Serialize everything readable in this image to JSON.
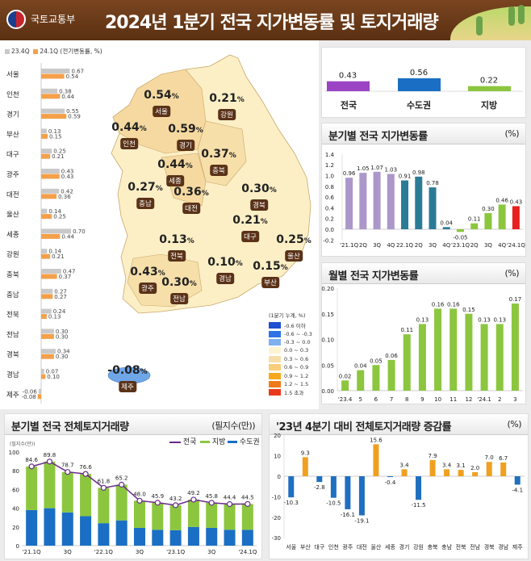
{
  "header": {
    "org": "국토교통부",
    "title": "2024년 1분기 전국 지가변동률 및 토지거래량"
  },
  "map": {
    "regions": [
      {
        "name": "서울",
        "value": "0.54"
      },
      {
        "name": "강원",
        "value": "0.21"
      },
      {
        "name": "인천",
        "value": "0.44"
      },
      {
        "name": "경기",
        "value": "0.59"
      },
      {
        "name": "충북",
        "value": "0.37"
      },
      {
        "name": "세종",
        "value": "0.44"
      },
      {
        "name": "충남",
        "value": "0.27"
      },
      {
        "name": "대전",
        "value": "0.36"
      },
      {
        "name": "경북",
        "value": "0.30"
      },
      {
        "name": "대구",
        "value": "0.21"
      },
      {
        "name": "울산",
        "value": "0.25"
      },
      {
        "name": "전북",
        "value": "0.13"
      },
      {
        "name": "경남",
        "value": "0.10"
      },
      {
        "name": "부산",
        "value": "0.15"
      },
      {
        "name": "광주",
        "value": "0.43"
      },
      {
        "name": "전남",
        "value": "0.30"
      },
      {
        "name": "제주",
        "value": "-0.08"
      }
    ],
    "unit": "%",
    "legend_title": "(1분기 누계, %)",
    "legend": [
      {
        "label": "-0.6 이하",
        "color": "#1f4fd0"
      },
      {
        "label": "-0.6 ~ -0.3",
        "color": "#2f72e6"
      },
      {
        "label": "-0.3 ~ 0.0",
        "color": "#7fb0f0"
      },
      {
        "label": "0.0 ~ 0.3",
        "color": "#fdf4d2"
      },
      {
        "label": "0.3 ~ 0.6",
        "color": "#f7dfaa"
      },
      {
        "label": "0.6 ~ 0.9",
        "color": "#f9cd7a"
      },
      {
        "label": "0.9 ~ 1.2",
        "color": "#f6a81c"
      },
      {
        "label": "1.2 ~ 1.5",
        "color": "#ee7a1c"
      },
      {
        "label": "1.5 초과",
        "color": "#e83a1a"
      }
    ]
  },
  "chart_data": [
    {
      "type": "bar",
      "orientation": "horizontal",
      "note": "(전기변동률, %)",
      "categories": [
        "서울",
        "인천",
        "경기",
        "부산",
        "대구",
        "광주",
        "대전",
        "울산",
        "세종",
        "강원",
        "충북",
        "충남",
        "전북",
        "전남",
        "경북",
        "경남",
        "제주"
      ],
      "series": [
        {
          "name": "23.4Q",
          "color": "#c9c9c9",
          "values": [
            0.67,
            0.38,
            0.55,
            0.13,
            0.25,
            0.43,
            0.42,
            0.14,
            0.7,
            0.14,
            0.47,
            0.27,
            0.24,
            0.3,
            0.34,
            0.07,
            -0.06
          ],
          "labels": [
            "0.67",
            "0.38",
            "0.55",
            "0.13",
            "0.25",
            "0.43",
            "0.42",
            "0.14",
            "0.70",
            "0.14",
            "0.47",
            "0.27",
            "0.24",
            "0.30",
            "0.34",
            "0.07",
            "-0.06"
          ]
        },
        {
          "name": "24.1Q",
          "color": "#f5a04a",
          "values": [
            0.54,
            0.44,
            0.59,
            0.15,
            0.21,
            0.43,
            0.36,
            0.25,
            0.44,
            0.21,
            0.37,
            0.27,
            0.13,
            0.3,
            0.3,
            0.1,
            -0.08
          ],
          "labels": [
            "0.54",
            "0.44",
            "0.59",
            "0.15",
            "0.21",
            "0.43",
            "0.36",
            "0.25",
            "0.44",
            "0.21",
            "0.37",
            "0.27",
            "0.13",
            "0.30",
            "0.30",
            "0.10",
            "-0.08"
          ]
        }
      ]
    },
    {
      "type": "bar",
      "categories": [
        "전국",
        "수도권",
        "지방"
      ],
      "values": [
        0.43,
        0.56,
        0.22
      ],
      "labels": [
        "0.43",
        "0.56",
        "0.22"
      ],
      "colors": [
        "#9b45c4",
        "#1a6fc4",
        "#8cc63f"
      ]
    },
    {
      "type": "bar",
      "title": "분기별 전국 지가변동률",
      "unit": "(%)",
      "categories": [
        "'21.1Q",
        "2Q",
        "3Q",
        "4Q",
        "22.1Q",
        "2Q",
        "3Q",
        "4Q",
        "'23.1Q",
        "2Q",
        "3Q",
        "4Q",
        "'24.1Q"
      ],
      "values": [
        0.96,
        1.05,
        1.07,
        1.03,
        0.91,
        0.98,
        0.78,
        0.04,
        -0.05,
        0.11,
        0.3,
        0.46,
        0.43
      ],
      "labels": [
        "0.96",
        "1.05",
        "1.07",
        "1.03",
        "0.91",
        "0.98",
        "0.78",
        "0.04",
        "-0.05",
        "0.11",
        "0.30",
        "0.46",
        "0.43"
      ],
      "colors": [
        "#ab97c9",
        "#ab97c9",
        "#ab97c9",
        "#ab97c9",
        "#2b7b96",
        "#2b7b96",
        "#2b7b96",
        "#2b7b96",
        "#8cc63f",
        "#8cc63f",
        "#8cc63f",
        "#8cc63f",
        "#e8201e"
      ],
      "ylim": [
        -0.2,
        1.4
      ],
      "yticks": [
        "1.4",
        "1.2",
        "1.0",
        "0.8",
        "0.6",
        "0.4",
        "0.2",
        "0.0",
        "-0.2"
      ]
    },
    {
      "type": "bar",
      "title": "월별 전국 지가변동률",
      "unit": "(%)",
      "categories": [
        "'23.4",
        "5",
        "6",
        "7",
        "8",
        "9",
        "10",
        "11",
        "12",
        "'24.1",
        "2",
        "3"
      ],
      "values": [
        0.02,
        0.04,
        0.05,
        0.06,
        0.11,
        0.13,
        0.16,
        0.16,
        0.15,
        0.13,
        0.13,
        0.17
      ],
      "labels": [
        "0.02",
        "0.04",
        "0.05",
        "0.06",
        "0.11",
        "0.13",
        "0.16",
        "0.16",
        "0.15",
        "0.13",
        "0.13",
        "0.17"
      ],
      "color": "#8cc63f",
      "ylim": [
        0,
        0.2
      ],
      "yticks": [
        "0.20",
        "0.15",
        "0.10",
        "0.05",
        "0.00"
      ]
    },
    {
      "type": "bar",
      "stacked": true,
      "title": "분기별 전국 전체토지거래량",
      "unit": "(필지수(만))",
      "yunit": "(필지수(만))",
      "categories": [
        "'21.1Q",
        "2Q",
        "3Q",
        "4Q",
        "'22.1Q",
        "2Q",
        "3Q",
        "4Q",
        "'23.1Q",
        "2Q",
        "3Q",
        "4Q",
        "'24.1Q"
      ],
      "xtick_labels": [
        "'21.1Q",
        "",
        "3Q",
        "",
        "'22.1Q",
        "",
        "3Q",
        "",
        "'23.1Q",
        "",
        "3Q",
        "",
        "'24.1Q"
      ],
      "series": [
        {
          "name": "전국",
          "type": "line",
          "color": "#6a2a8a",
          "values": [
            84.6,
            89.8,
            78.7,
            76.6,
            61.8,
            65.2,
            48.0,
            45.9,
            43.2,
            49.2,
            45.8,
            44.4,
            44.5
          ],
          "labels": [
            "84.6",
            "89.8",
            "78.7",
            "76.6",
            "61.8",
            "65.2",
            "48.0",
            "45.9",
            "43.2",
            "49.2",
            "45.8",
            "44.4",
            "44.5"
          ]
        },
        {
          "name": "지방",
          "color": "#8cc63f",
          "values": [
            46.6,
            49.8,
            43.2,
            45.1,
            37.8,
            38.2,
            29.0,
            28.9,
            26.7,
            29.2,
            26.8,
            27.4,
            27.5
          ]
        },
        {
          "name": "수도권",
          "color": "#1a6fc4",
          "values": [
            38.0,
            40.0,
            35.5,
            31.5,
            24.0,
            27.0,
            19.0,
            17.0,
            16.5,
            20.0,
            19.0,
            17.0,
            17.0
          ]
        }
      ],
      "ylim": [
        0,
        100
      ],
      "yticks": [
        "100",
        "80",
        "60",
        "40",
        "20",
        "0"
      ]
    },
    {
      "type": "bar",
      "title": "'23년 4분기 대비 전체토지거래량 증감률",
      "unit": "(%)",
      "categories": [
        "서울",
        "부산",
        "대구",
        "인천",
        "광주",
        "대전",
        "울산",
        "세종",
        "경기",
        "강원",
        "충북",
        "충남",
        "전북",
        "전남",
        "경북",
        "경남",
        "제주"
      ],
      "values": [
        -10.3,
        9.3,
        -2.8,
        -10.5,
        -16.1,
        -19.1,
        15.6,
        -0.4,
        3.4,
        -11.5,
        7.9,
        3.4,
        3.1,
        2.0,
        7.0,
        6.7,
        -4.1
      ],
      "labels": [
        "-10.3",
        "9.3",
        "-2.8",
        "-10.5",
        "-16.1",
        "-19.1",
        "15.6",
        "-0.4",
        "3.4",
        "-11.5",
        "7.9",
        "3.4",
        "3.1",
        "2.0",
        "7.0",
        "6.7",
        "-4.1"
      ],
      "colors": {
        "positive": "#f0a020",
        "negative": "#1f6fc0"
      },
      "ylim": [
        -30,
        20
      ],
      "yticks": [
        "20",
        "10",
        "0",
        "-10",
        "-20",
        "-30"
      ]
    }
  ]
}
